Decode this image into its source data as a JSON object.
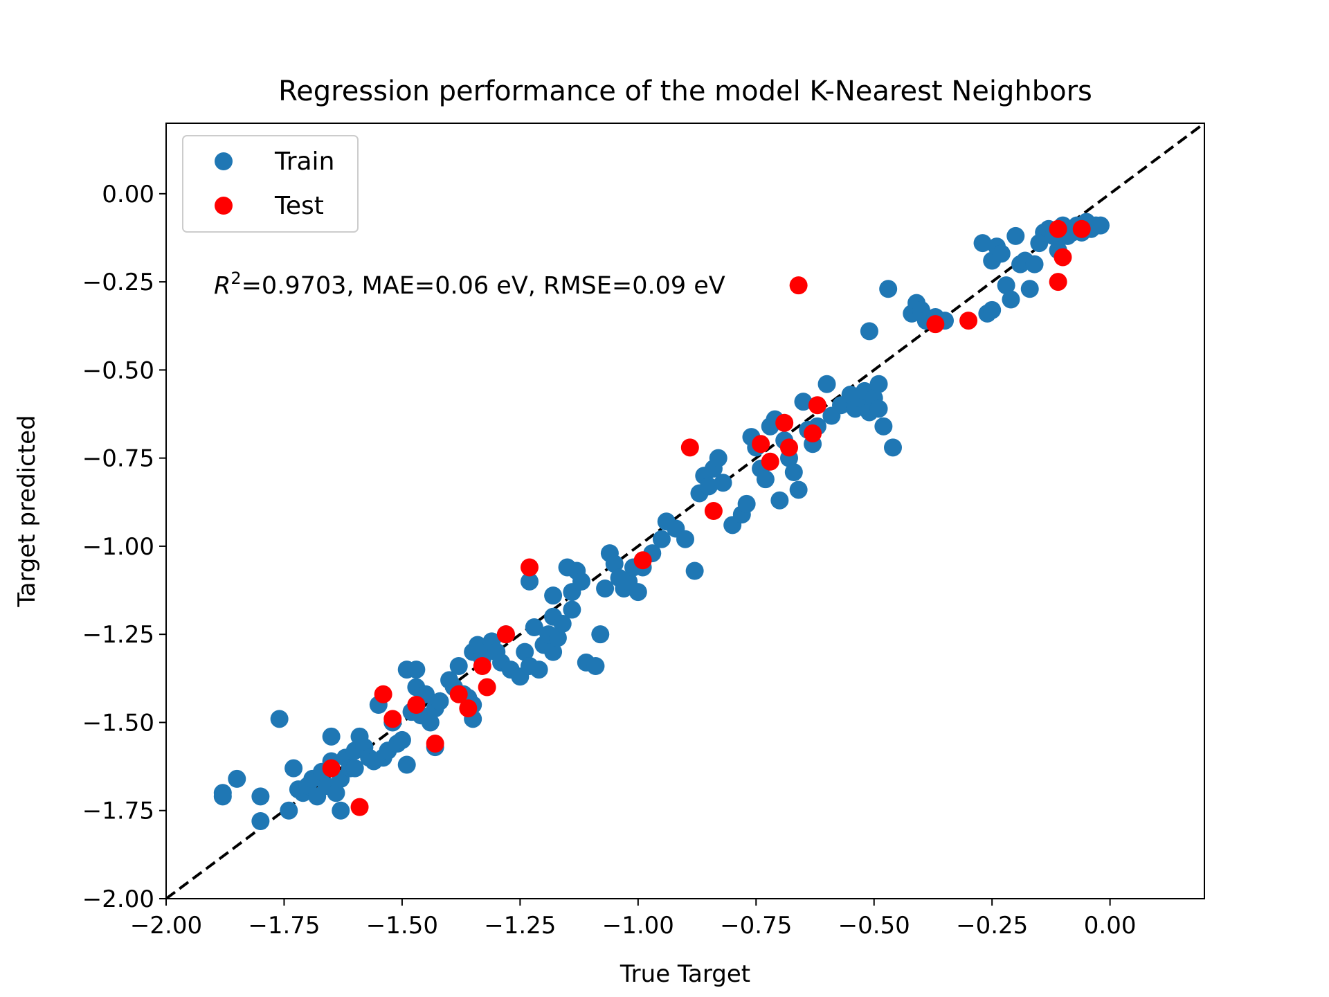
{
  "chart_data": {
    "type": "scatter",
    "title": "Regression performance of the model K-Nearest Neighbors",
    "xlabel": "True Target",
    "ylabel": "Target predicted",
    "xlim": [
      -2.0,
      0.2
    ],
    "ylim": [
      -2.0,
      0.2
    ],
    "xticks": [
      "−2.00",
      "−1.75",
      "−1.50",
      "−1.25",
      "−1.00",
      "−0.75",
      "−0.50",
      "−0.25",
      "0.00"
    ],
    "yticks": [
      "−2.00",
      "−1.75",
      "−1.50",
      "−1.25",
      "−1.00",
      "−0.75",
      "−0.50",
      "−0.25",
      "0.00"
    ],
    "grid": false,
    "legend_position": "upper left",
    "reference_line": "y = x (black dashed)",
    "annotation": {
      "r2_label": "R",
      "r2_sup": "2",
      "rest": "=0.9703, MAE=0.06 eV, RMSE=0.09 eV"
    },
    "series": [
      {
        "name": "Train",
        "color": "#1f77b4",
        "points": [
          [
            -1.88,
            -1.7
          ],
          [
            -1.88,
            -1.71
          ],
          [
            -1.85,
            -1.66
          ],
          [
            -1.8,
            -1.71
          ],
          [
            -1.8,
            -1.78
          ],
          [
            -1.76,
            -1.49
          ],
          [
            -1.74,
            -1.75
          ],
          [
            -1.73,
            -1.63
          ],
          [
            -1.72,
            -1.69
          ],
          [
            -1.71,
            -1.7
          ],
          [
            -1.7,
            -1.68
          ],
          [
            -1.69,
            -1.66
          ],
          [
            -1.68,
            -1.71
          ],
          [
            -1.67,
            -1.64
          ],
          [
            -1.66,
            -1.68
          ],
          [
            -1.65,
            -1.54
          ],
          [
            -1.65,
            -1.61
          ],
          [
            -1.64,
            -1.7
          ],
          [
            -1.63,
            -1.75
          ],
          [
            -1.63,
            -1.66
          ],
          [
            -1.62,
            -1.6
          ],
          [
            -1.61,
            -1.63
          ],
          [
            -1.6,
            -1.63
          ],
          [
            -1.6,
            -1.58
          ],
          [
            -1.59,
            -1.54
          ],
          [
            -1.58,
            -1.57
          ],
          [
            -1.57,
            -1.6
          ],
          [
            -1.56,
            -1.61
          ],
          [
            -1.55,
            -1.45
          ],
          [
            -1.54,
            -1.6
          ],
          [
            -1.53,
            -1.58
          ],
          [
            -1.52,
            -1.5
          ],
          [
            -1.51,
            -1.56
          ],
          [
            -1.5,
            -1.55
          ],
          [
            -1.49,
            -1.62
          ],
          [
            -1.49,
            -1.35
          ],
          [
            -1.48,
            -1.47
          ],
          [
            -1.47,
            -1.35
          ],
          [
            -1.47,
            -1.4
          ],
          [
            -1.46,
            -1.48
          ],
          [
            -1.45,
            -1.42
          ],
          [
            -1.44,
            -1.5
          ],
          [
            -1.43,
            -1.57
          ],
          [
            -1.43,
            -1.46
          ],
          [
            -1.42,
            -1.44
          ],
          [
            -1.4,
            -1.38
          ],
          [
            -1.39,
            -1.4
          ],
          [
            -1.38,
            -1.34
          ],
          [
            -1.37,
            -1.42
          ],
          [
            -1.36,
            -1.43
          ],
          [
            -1.35,
            -1.45
          ],
          [
            -1.35,
            -1.49
          ],
          [
            -1.35,
            -1.3
          ],
          [
            -1.34,
            -1.28
          ],
          [
            -1.33,
            -1.32
          ],
          [
            -1.32,
            -1.3
          ],
          [
            -1.31,
            -1.27
          ],
          [
            -1.3,
            -1.3
          ],
          [
            -1.29,
            -1.33
          ],
          [
            -1.28,
            -1.25
          ],
          [
            -1.27,
            -1.35
          ],
          [
            -1.25,
            -1.37
          ],
          [
            -1.24,
            -1.3
          ],
          [
            -1.23,
            -1.34
          ],
          [
            -1.23,
            -1.1
          ],
          [
            -1.22,
            -1.23
          ],
          [
            -1.21,
            -1.35
          ],
          [
            -1.2,
            -1.28
          ],
          [
            -1.19,
            -1.25
          ],
          [
            -1.18,
            -1.3
          ],
          [
            -1.18,
            -1.2
          ],
          [
            -1.18,
            -1.14
          ],
          [
            -1.17,
            -1.26
          ],
          [
            -1.16,
            -1.22
          ],
          [
            -1.15,
            -1.06
          ],
          [
            -1.14,
            -1.18
          ],
          [
            -1.14,
            -1.13
          ],
          [
            -1.13,
            -1.07
          ],
          [
            -1.12,
            -1.1
          ],
          [
            -1.11,
            -1.33
          ],
          [
            -1.09,
            -1.34
          ],
          [
            -1.08,
            -1.25
          ],
          [
            -1.07,
            -1.12
          ],
          [
            -1.06,
            -1.02
          ],
          [
            -1.05,
            -1.05
          ],
          [
            -1.04,
            -1.09
          ],
          [
            -1.03,
            -1.12
          ],
          [
            -1.02,
            -1.1
          ],
          [
            -1.01,
            -1.06
          ],
          [
            -1.0,
            -1.13
          ],
          [
            -0.99,
            -1.06
          ],
          [
            -0.97,
            -1.02
          ],
          [
            -0.95,
            -0.98
          ],
          [
            -0.94,
            -0.93
          ],
          [
            -0.92,
            -0.95
          ],
          [
            -0.9,
            -0.98
          ],
          [
            -0.88,
            -1.07
          ],
          [
            -0.87,
            -0.85
          ],
          [
            -0.86,
            -0.8
          ],
          [
            -0.85,
            -0.83
          ],
          [
            -0.84,
            -0.78
          ],
          [
            -0.83,
            -0.75
          ],
          [
            -0.82,
            -0.82
          ],
          [
            -0.8,
            -0.94
          ],
          [
            -0.78,
            -0.91
          ],
          [
            -0.77,
            -0.88
          ],
          [
            -0.76,
            -0.69
          ],
          [
            -0.75,
            -0.72
          ],
          [
            -0.74,
            -0.78
          ],
          [
            -0.73,
            -0.81
          ],
          [
            -0.72,
            -0.66
          ],
          [
            -0.71,
            -0.64
          ],
          [
            -0.7,
            -0.87
          ],
          [
            -0.69,
            -0.7
          ],
          [
            -0.68,
            -0.75
          ],
          [
            -0.67,
            -0.79
          ],
          [
            -0.66,
            -0.84
          ],
          [
            -0.65,
            -0.59
          ],
          [
            -0.64,
            -0.67
          ],
          [
            -0.63,
            -0.71
          ],
          [
            -0.62,
            -0.66
          ],
          [
            -0.6,
            -0.54
          ],
          [
            -0.59,
            -0.63
          ],
          [
            -0.57,
            -0.6
          ],
          [
            -0.55,
            -0.57
          ],
          [
            -0.54,
            -0.61
          ],
          [
            -0.53,
            -0.58
          ],
          [
            -0.52,
            -0.56
          ],
          [
            -0.51,
            -0.62
          ],
          [
            -0.51,
            -0.39
          ],
          [
            -0.5,
            -0.58
          ],
          [
            -0.49,
            -0.54
          ],
          [
            -0.49,
            -0.61
          ],
          [
            -0.48,
            -0.66
          ],
          [
            -0.47,
            -0.27
          ],
          [
            -0.46,
            -0.72
          ],
          [
            -0.42,
            -0.34
          ],
          [
            -0.41,
            -0.31
          ],
          [
            -0.4,
            -0.33
          ],
          [
            -0.39,
            -0.36
          ],
          [
            -0.37,
            -0.35
          ],
          [
            -0.35,
            -0.36
          ],
          [
            -0.27,
            -0.14
          ],
          [
            -0.26,
            -0.34
          ],
          [
            -0.25,
            -0.33
          ],
          [
            -0.25,
            -0.19
          ],
          [
            -0.24,
            -0.15
          ],
          [
            -0.23,
            -0.17
          ],
          [
            -0.22,
            -0.26
          ],
          [
            -0.21,
            -0.3
          ],
          [
            -0.2,
            -0.12
          ],
          [
            -0.19,
            -0.2
          ],
          [
            -0.18,
            -0.19
          ],
          [
            -0.17,
            -0.27
          ],
          [
            -0.16,
            -0.2
          ],
          [
            -0.15,
            -0.14
          ],
          [
            -0.14,
            -0.11
          ],
          [
            -0.13,
            -0.1
          ],
          [
            -0.12,
            -0.12
          ],
          [
            -0.11,
            -0.16
          ],
          [
            -0.1,
            -0.09
          ],
          [
            -0.09,
            -0.12
          ],
          [
            -0.08,
            -0.11
          ],
          [
            -0.07,
            -0.09
          ],
          [
            -0.06,
            -0.11
          ],
          [
            -0.05,
            -0.08
          ],
          [
            -0.04,
            -0.1
          ],
          [
            -0.03,
            -0.09
          ],
          [
            -0.02,
            -0.09
          ]
        ]
      },
      {
        "name": "Test",
        "color": "#ff0000",
        "points": [
          [
            -1.65,
            -1.63
          ],
          [
            -1.59,
            -1.74
          ],
          [
            -1.54,
            -1.42
          ],
          [
            -1.52,
            -1.49
          ],
          [
            -1.47,
            -1.45
          ],
          [
            -1.43,
            -1.56
          ],
          [
            -1.38,
            -1.42
          ],
          [
            -1.36,
            -1.46
          ],
          [
            -1.33,
            -1.34
          ],
          [
            -1.32,
            -1.4
          ],
          [
            -1.28,
            -1.25
          ],
          [
            -1.23,
            -1.06
          ],
          [
            -0.99,
            -1.04
          ],
          [
            -0.89,
            -0.72
          ],
          [
            -0.84,
            -0.9
          ],
          [
            -0.74,
            -0.71
          ],
          [
            -0.72,
            -0.76
          ],
          [
            -0.69,
            -0.65
          ],
          [
            -0.68,
            -0.72
          ],
          [
            -0.66,
            -0.26
          ],
          [
            -0.63,
            -0.68
          ],
          [
            -0.62,
            -0.6
          ],
          [
            -0.37,
            -0.37
          ],
          [
            -0.3,
            -0.36
          ],
          [
            -0.11,
            -0.25
          ],
          [
            -0.11,
            -0.1
          ],
          [
            -0.1,
            -0.18
          ],
          [
            -0.06,
            -0.1
          ]
        ]
      }
    ]
  }
}
